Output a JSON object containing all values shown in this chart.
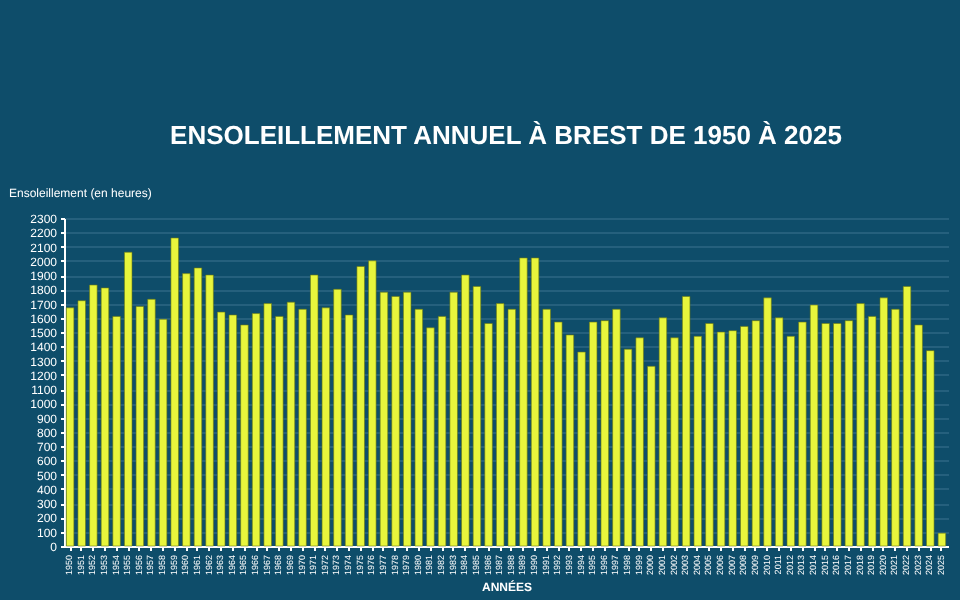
{
  "chart_data": {
    "type": "bar",
    "title": "ENSOLEILLEMENT ANNUEL À BREST DE 1950 À 2025",
    "ylabel": "Ensoleillement (en heures)",
    "xlabel": "ANNÉES",
    "categories": [
      "1950",
      "1951",
      "1952",
      "1953",
      "1954",
      "1955",
      "1956",
      "1957",
      "1958",
      "1959",
      "1960",
      "1961",
      "1962",
      "1963",
      "1964",
      "1965",
      "1966",
      "1967",
      "1968",
      "1969",
      "1970",
      "1971",
      "1972",
      "1973",
      "1974",
      "1975",
      "1976",
      "1977",
      "1978",
      "1979",
      "1980",
      "1981",
      "1982",
      "1983",
      "1984",
      "1985",
      "1986",
      "1987",
      "1988",
      "1989",
      "1990",
      "1991",
      "1992",
      "1993",
      "1994",
      "1995",
      "1996",
      "1997",
      "1998",
      "1999",
      "2000",
      "2001",
      "2002",
      "2003",
      "2004",
      "2005",
      "2006",
      "2007",
      "2008",
      "2009",
      "2010",
      "2011",
      "2012",
      "2013",
      "2014",
      "2015",
      "2016",
      "2017",
      "2018",
      "2019",
      "2020",
      "2021",
      "2022",
      "2023",
      "2024",
      "2025"
    ],
    "values": [
      1670,
      1720,
      1830,
      1810,
      1610,
      2060,
      1680,
      1730,
      1590,
      2160,
      1910,
      1950,
      1900,
      1640,
      1620,
      1550,
      1630,
      1700,
      1610,
      1710,
      1660,
      1900,
      1670,
      1800,
      1620,
      1960,
      2000,
      1780,
      1750,
      1780,
      1660,
      1530,
      1610,
      1780,
      1900,
      1820,
      1560,
      1700,
      1660,
      2020,
      2020,
      1660,
      1570,
      1480,
      1360,
      1570,
      1580,
      1660,
      1380,
      1460,
      1260,
      1600,
      1460,
      1750,
      1470,
      1560,
      1500,
      1510,
      1540,
      1580,
      1740,
      1600,
      1470,
      1570,
      1690,
      1560,
      1560,
      1580,
      1700,
      1610,
      1740,
      1660,
      1820,
      1550,
      1370,
      90
    ],
    "color": "#e8f53c",
    "ylim": [
      0,
      2300
    ],
    "yticks": [
      0,
      100,
      200,
      300,
      400,
      500,
      600,
      700,
      800,
      900,
      1000,
      1100,
      1200,
      1300,
      1400,
      1500,
      1600,
      1700,
      1800,
      1900,
      2000,
      2100,
      2200,
      2300
    ],
    "grid": "y"
  }
}
